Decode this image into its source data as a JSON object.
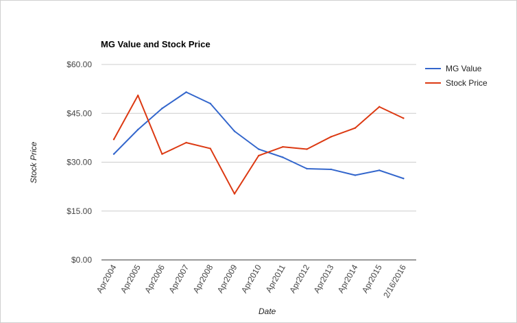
{
  "chart_data": {
    "type": "line",
    "title": "MG Value and Stock Price",
    "xlabel": "Date",
    "ylabel": "Stock Price",
    "categories": [
      "Apr2004",
      "Apr2005",
      "Apr2006",
      "Apr2007",
      "Apr2008",
      "Apr2009",
      "Apr2010",
      "Apr2011",
      "Apr2012",
      "Apr2013",
      "Apr2014",
      "Apr2015",
      "2/16/2016"
    ],
    "ylim": [
      0,
      60
    ],
    "yticks": [
      0,
      15,
      30,
      45,
      60
    ],
    "ytick_labels": [
      "$0.00",
      "$15.00",
      "$30.00",
      "$45.00",
      "$60.00"
    ],
    "grid": true,
    "legend_position": "top-right",
    "series": [
      {
        "name": "MG Value",
        "color": "#3366cc",
        "values": [
          32.5,
          40,
          46.5,
          51.5,
          48,
          39.5,
          34,
          31.5,
          28,
          27.8,
          26,
          27.5,
          25
        ]
      },
      {
        "name": "Stock Price",
        "color": "#dc3912",
        "values": [
          37,
          50.5,
          32.5,
          36,
          34.2,
          20.3,
          32,
          34.7,
          34,
          37.8,
          40.5,
          47,
          43.5
        ]
      }
    ]
  }
}
